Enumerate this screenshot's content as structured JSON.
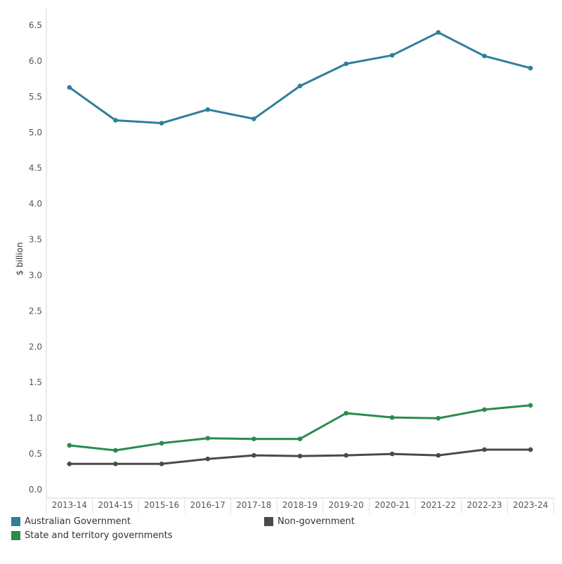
{
  "chart_data": {
    "type": "line",
    "x": [
      "2013-14",
      "2014-15",
      "2015-16",
      "2016-17",
      "2017-18",
      "2018-19",
      "2019-20",
      "2020-21",
      "2021-22",
      "2022-23",
      "2023-24"
    ],
    "ylabel": "$ billion",
    "ylim": [
      0,
      6.5
    ],
    "yticks": [
      "0.0",
      "0.5",
      "1.0",
      "1.5",
      "2.0",
      "2.5",
      "3.0",
      "3.5",
      "4.0",
      "4.5",
      "5.0",
      "5.5",
      "6.0",
      "6.5"
    ],
    "grid": false,
    "legend_position": "bottom",
    "series": [
      {
        "name": "Australian Government",
        "color": "#2e7f9a",
        "values": [
          5.63,
          5.17,
          5.13,
          5.32,
          5.19,
          5.65,
          5.96,
          6.08,
          6.4,
          6.07,
          5.9
        ]
      },
      {
        "name": "State and territory governments",
        "color": "#2b8a4e",
        "values": [
          0.62,
          0.55,
          0.65,
          0.72,
          0.71,
          0.71,
          1.07,
          1.01,
          1.0,
          1.12,
          1.18
        ]
      },
      {
        "name": "Non-government",
        "color": "#4a4a4a",
        "values": [
          0.36,
          0.36,
          0.36,
          0.43,
          0.48,
          0.47,
          0.48,
          0.5,
          0.48,
          0.56,
          0.56
        ]
      }
    ]
  }
}
